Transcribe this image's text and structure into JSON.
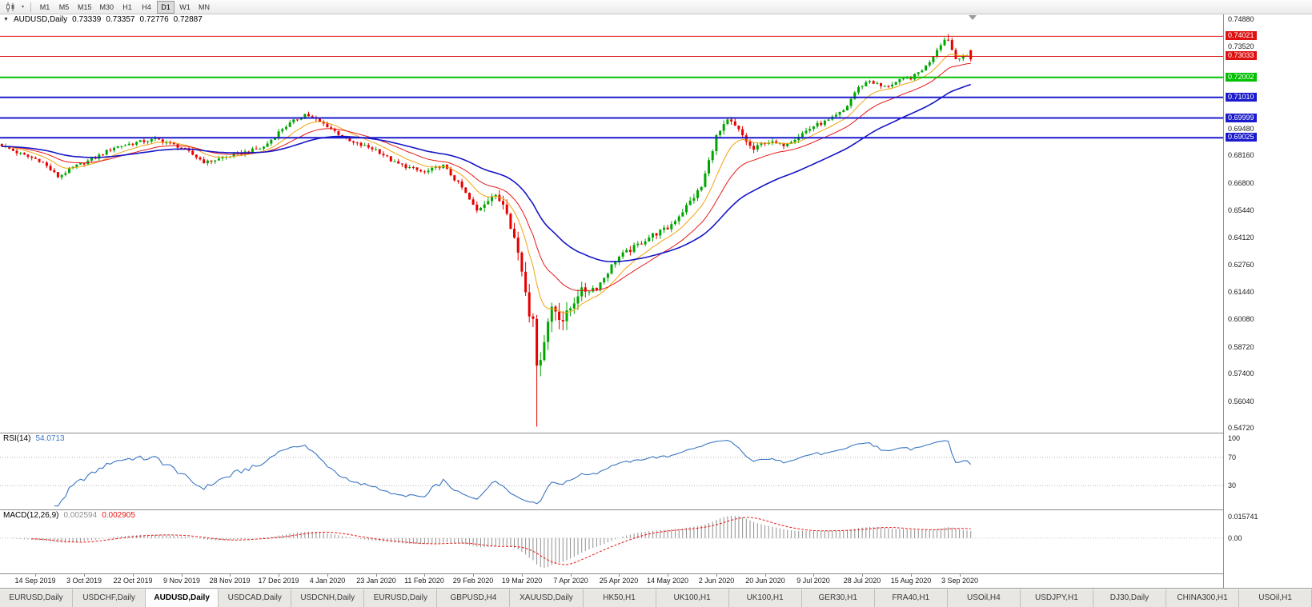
{
  "toolbar": {
    "caret_glyph": "▾",
    "timeframes": [
      "M1",
      "M5",
      "M15",
      "M30",
      "H1",
      "H4",
      "D1",
      "W1",
      "MN"
    ],
    "active_timeframe": "D1"
  },
  "chart_header": {
    "collapse_glyph": "▼",
    "symbol_period": "AUDUSD,Daily",
    "open": "0.73339",
    "high": "0.73357",
    "low": "0.72776",
    "close": "0.72887"
  },
  "rsi_header": {
    "name": "RSI(14)",
    "value": "54.0713"
  },
  "macd_header": {
    "name": "MACD(12,26,9)",
    "value_main": "0.002594",
    "value_signal": "0.002905"
  },
  "chart_data": {
    "type": "candlestick",
    "symbol": "AUDUSD",
    "period": "Daily",
    "ohlc_current": {
      "open": 0.73339,
      "high": 0.73357,
      "low": 0.72776,
      "close": 0.72887
    },
    "num_candles": 260,
    "candle_area_width": 1215,
    "colors": {
      "up": "#00a600",
      "down": "#e60000",
      "background": "#ffffff"
    },
    "price_axis": {
      "range": [
        0.545,
        0.751
      ],
      "labels": [
        "0.74880",
        "0.73520",
        "0.69480",
        "0.68160",
        "0.66800",
        "0.65440",
        "0.64120",
        "0.62760",
        "0.61440",
        "0.60080",
        "0.58720",
        "0.57400",
        "0.56040",
        "0.54720"
      ]
    },
    "date_axis": {
      "labels": [
        "14 Sep 2019",
        "3 Oct 2019",
        "22 Oct 2019",
        "9 Nov 2019",
        "28 Nov 2019",
        "17 Dec 2019",
        "4 Jan 2020",
        "23 Jan 2020",
        "11 Feb 2020",
        "29 Feb 2020",
        "19 Mar 2020",
        "7 Apr 2020",
        "25 Apr 2020",
        "14 May 2020",
        "2 Jun 2020",
        "20 Jun 2020",
        "9 Jul 2020",
        "28 Jul 2020",
        "15 Aug 2020",
        "3 Sep 2020"
      ],
      "first_index": 9,
      "index_step": 13
    },
    "hlines": [
      {
        "price": 0.74021,
        "label": "0.74021",
        "color": "#dd1111",
        "width": 1
      },
      {
        "price": 0.73033,
        "label": "0.73033",
        "color": "#dd1111",
        "width": 1
      },
      {
        "price": 0.72002,
        "label": "0.72002",
        "color": "#00c000",
        "width": 2
      },
      {
        "price": 0.7101,
        "label": "0.71010",
        "color": "#1b1bcd",
        "width": 2
      },
      {
        "price": 0.69999,
        "label": "0.69999",
        "color": "#1b1bcd",
        "width": 2
      },
      {
        "price": 0.69025,
        "label": "0.69025",
        "color": "#1b1bcd",
        "width": 2
      }
    ],
    "moving_averages": [
      {
        "name": "ma-fast",
        "period": 10,
        "color": "#f1a211",
        "width": 1
      },
      {
        "name": "ma-medium",
        "period": 21,
        "color": "#e81717",
        "width": 1
      },
      {
        "name": "ma-slow",
        "period": 45,
        "color": "#1515c8",
        "width": 1.6
      }
    ],
    "indicators": {
      "rsi": {
        "period": 14,
        "current": 54.0713,
        "levels": [
          70,
          30
        ],
        "axis_labels": [
          "100",
          "70",
          "30"
        ],
        "color": "#3b76c2"
      },
      "macd": {
        "fast": 12,
        "slow": 26,
        "signal": 9,
        "current_main": 0.002594,
        "current_signal": 0.002905,
        "axis_labels": [
          "0.015741",
          "0.00"
        ],
        "hist_color": "#8f8f8f",
        "signal_color": "#e81717"
      }
    },
    "close_anchors": [
      [
        0.0,
        0.6865
      ],
      [
        0.02,
        0.682
      ],
      [
        0.04,
        0.679
      ],
      [
        0.058,
        0.671
      ],
      [
        0.075,
        0.676
      ],
      [
        0.095,
        0.68
      ],
      [
        0.115,
        0.6855
      ],
      [
        0.14,
        0.688
      ],
      [
        0.16,
        0.6895
      ],
      [
        0.185,
        0.6855
      ],
      [
        0.21,
        0.678
      ],
      [
        0.225,
        0.68
      ],
      [
        0.25,
        0.683
      ],
      [
        0.27,
        0.6855
      ],
      [
        0.29,
        0.695
      ],
      [
        0.313,
        0.702
      ],
      [
        0.336,
        0.696
      ],
      [
        0.36,
        0.688
      ],
      [
        0.386,
        0.6845
      ],
      [
        0.405,
        0.678
      ],
      [
        0.436,
        0.673
      ],
      [
        0.455,
        0.6768
      ],
      [
        0.475,
        0.6655
      ],
      [
        0.49,
        0.654
      ],
      [
        0.505,
        0.662
      ],
      [
        0.52,
        0.6575
      ],
      [
        0.535,
        0.6295
      ],
      [
        0.548,
        0.596
      ],
      [
        0.553,
        0.578
      ],
      [
        0.561,
        0.594
      ],
      [
        0.568,
        0.608
      ],
      [
        0.58,
        0.6
      ],
      [
        0.595,
        0.614
      ],
      [
        0.615,
        0.617
      ],
      [
        0.635,
        0.631
      ],
      [
        0.652,
        0.636
      ],
      [
        0.67,
        0.642
      ],
      [
        0.687,
        0.6455
      ],
      [
        0.705,
        0.6555
      ],
      [
        0.722,
        0.666
      ],
      [
        0.737,
        0.6905
      ],
      [
        0.75,
        0.699
      ],
      [
        0.762,
        0.693
      ],
      [
        0.775,
        0.684
      ],
      [
        0.788,
        0.6885
      ],
      [
        0.805,
        0.6865
      ],
      [
        0.82,
        0.6905
      ],
      [
        0.838,
        0.696
      ],
      [
        0.855,
        0.699
      ],
      [
        0.87,
        0.704
      ],
      [
        0.882,
        0.714
      ],
      [
        0.895,
        0.7185
      ],
      [
        0.91,
        0.715
      ],
      [
        0.925,
        0.718
      ],
      [
        0.94,
        0.72
      ],
      [
        0.955,
        0.726
      ],
      [
        0.968,
        0.736
      ],
      [
        0.976,
        0.74
      ],
      [
        0.984,
        0.729
      ],
      [
        0.992,
        0.731
      ],
      [
        1.0,
        0.7289
      ]
    ],
    "noise": {
      "base": 0.0016,
      "crash_amp": 0.0048,
      "crash_center": 0.555,
      "crash_width": 0.045,
      "recovery_amp": 0.0009,
      "recovery_center": 0.7,
      "recovery_width": 0.12
    },
    "key_points": {
      "crash_t": 0.553,
      "crash_open": 0.601,
      "crash_close": 0.578,
      "crash_low": 0.548,
      "peak_t": 0.976,
      "peak_high": 0.7413
    }
  },
  "tabs": {
    "active_index": 2,
    "items": [
      "EURUSD,Daily",
      "USDCHF,Daily",
      "AUDUSD,Daily",
      "USDCAD,Daily",
      "USDCNH,Daily",
      "EURUSD,Daily",
      "GBPUSD,H4",
      "XAUUSD,Daily",
      "HK50,H1",
      "UK100,H1",
      "UK100,H1",
      "GER30,H1",
      "FRA40,H1",
      "USOil,H4",
      "USDJPY,H1",
      "DJ30,Daily",
      "CHINA300,H1",
      "USOil,H1"
    ]
  }
}
